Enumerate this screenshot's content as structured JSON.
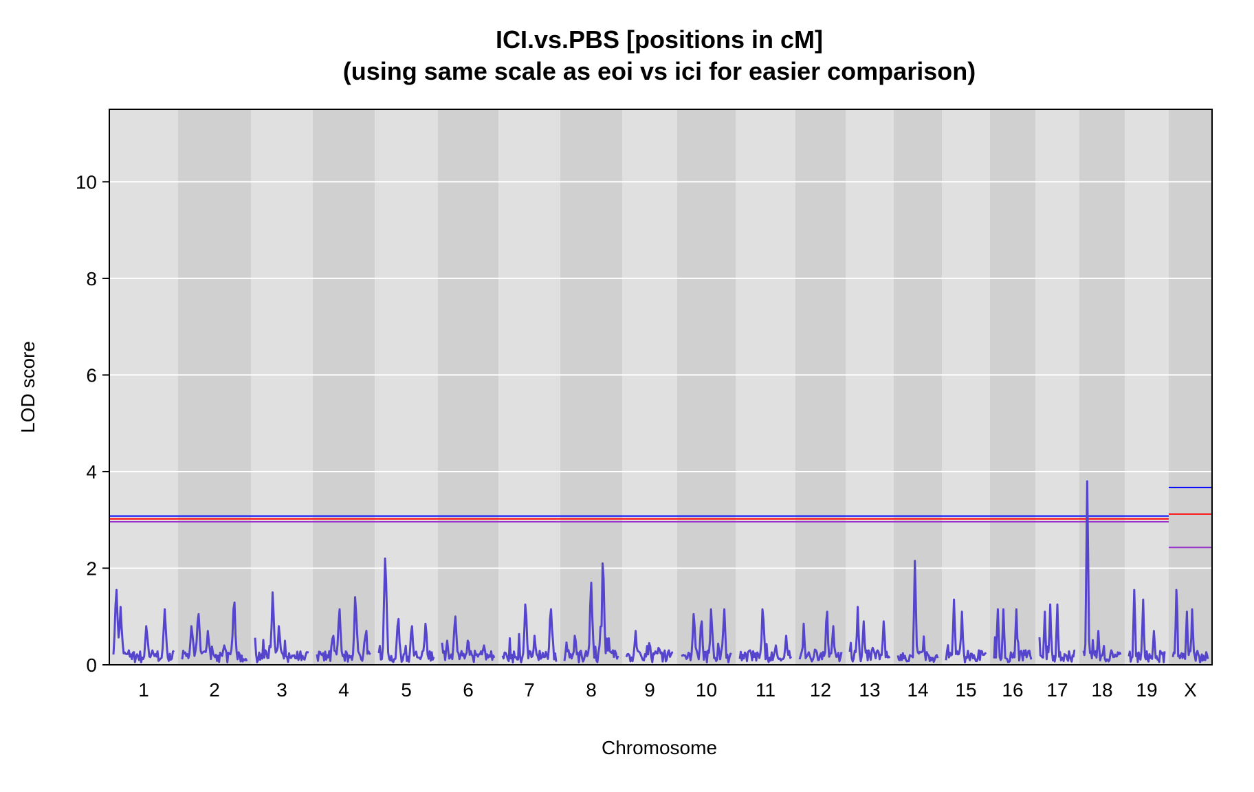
{
  "chart_data": {
    "type": "line",
    "title_line1": "ICI.vs.PBS [positions in cM]",
    "title_line2": "(using same scale as eoi vs ici for easier comparison)",
    "xlabel": "Chromosome",
    "ylabel": "LOD score",
    "ylim": [
      0,
      11.5
    ],
    "yticks": [
      "0",
      "2",
      "4",
      "6",
      "8",
      "10"
    ],
    "grid": true,
    "colors": {
      "lod": "#5544cc",
      "threshold_blue": "#0000ff",
      "threshold_red": "#ff0000",
      "threshold_purple": "#9933cc",
      "band_light": "#e0e0e0",
      "band_dark": "#d0d0d0"
    },
    "chromosomes": [
      {
        "name": "1",
        "peaks": [
          [
            0.05,
            1.55
          ],
          [
            0.12,
            1.2
          ],
          [
            0.25,
            0.3
          ],
          [
            0.55,
            0.8
          ],
          [
            0.85,
            1.15
          ]
        ]
      },
      {
        "name": "2",
        "peaks": [
          [
            0.15,
            0.8
          ],
          [
            0.25,
            1.05
          ],
          [
            0.4,
            0.7
          ],
          [
            0.65,
            0.4
          ],
          [
            0.8,
            1.15
          ]
        ]
      },
      {
        "name": "3",
        "peaks": [
          [
            0.2,
            0.3
          ],
          [
            0.33,
            1.5
          ],
          [
            0.5,
            0.25
          ],
          [
            0.45,
            0.8
          ],
          [
            0.8,
            0.1
          ]
        ]
      },
      {
        "name": "4",
        "peaks": [
          [
            0.1,
            0.2
          ],
          [
            0.3,
            0.6
          ],
          [
            0.42,
            1.15
          ],
          [
            0.72,
            1.4
          ],
          [
            0.9,
            0.6
          ]
        ]
      },
      {
        "name": "5",
        "peaks": [
          [
            0.12,
            2.2
          ],
          [
            0.35,
            0.95
          ],
          [
            0.6,
            0.8
          ],
          [
            0.85,
            0.85
          ]
        ]
      },
      {
        "name": "6",
        "peaks": [
          [
            0.1,
            0.5
          ],
          [
            0.25,
            1.0
          ],
          [
            0.5,
            0.5
          ],
          [
            0.8,
            0.4
          ]
        ]
      },
      {
        "name": "7",
        "peaks": [
          [
            0.2,
            0.05
          ],
          [
            0.43,
            1.25
          ],
          [
            0.6,
            0.6
          ],
          [
            0.9,
            1.15
          ]
        ]
      },
      {
        "name": "8",
        "peaks": [
          [
            0.2,
            0.6
          ],
          [
            0.5,
            1.7
          ],
          [
            0.7,
            0.8
          ],
          [
            0.72,
            2.1
          ],
          [
            0.9,
            0.3
          ]
        ]
      },
      {
        "name": "9",
        "peaks": [
          [
            0.2,
            0.7
          ],
          [
            0.5,
            0.45
          ],
          [
            0.7,
            0.35
          ],
          [
            0.9,
            0.3
          ]
        ]
      },
      {
        "name": "10",
        "peaks": [
          [
            0.25,
            1.05
          ],
          [
            0.4,
            0.9
          ],
          [
            0.6,
            1.15
          ],
          [
            0.85,
            1.15
          ]
        ]
      },
      {
        "name": "11",
        "peaks": [
          [
            0.2,
            0.3
          ],
          [
            0.45,
            1.15
          ],
          [
            0.7,
            0.4
          ],
          [
            0.9,
            0.6
          ]
        ]
      },
      {
        "name": "12",
        "peaks": [
          [
            0.1,
            0.85
          ],
          [
            0.4,
            0.3
          ],
          [
            0.65,
            1.1
          ],
          [
            0.8,
            0.8
          ]
        ]
      },
      {
        "name": "13",
        "peaks": [
          [
            0.2,
            1.2
          ],
          [
            0.35,
            0.9
          ],
          [
            0.6,
            0.3
          ],
          [
            0.85,
            0.9
          ]
        ]
      },
      {
        "name": "14",
        "peaks": [
          [
            0.1,
            0.1
          ],
          [
            0.43,
            2.15
          ],
          [
            0.7,
            0.1
          ]
        ]
      },
      {
        "name": "15",
        "peaks": [
          [
            0.2,
            1.35
          ],
          [
            0.4,
            1.1
          ],
          [
            0.7,
            0.2
          ]
        ]
      },
      {
        "name": "16",
        "peaks": [
          [
            0.1,
            1.15
          ],
          [
            0.25,
            1.15
          ],
          [
            0.6,
            1.15
          ],
          [
            0.85,
            0.3
          ]
        ]
      },
      {
        "name": "17",
        "peaks": [
          [
            0.15,
            1.1
          ],
          [
            0.3,
            1.25
          ],
          [
            0.5,
            1.25
          ],
          [
            0.75,
            0.2
          ]
        ]
      },
      {
        "name": "18",
        "peaks": [
          [
            0.1,
            3.8
          ],
          [
            0.4,
            0.7
          ],
          [
            0.75,
            0.3
          ]
        ]
      },
      {
        "name": "19",
        "peaks": [
          [
            0.15,
            1.55
          ],
          [
            0.4,
            1.35
          ],
          [
            0.7,
            0.7
          ]
        ]
      },
      {
        "name": "X",
        "peaks": [
          [
            0.1,
            1.55
          ],
          [
            0.4,
            1.1
          ],
          [
            0.55,
            1.15
          ],
          [
            0.8,
            0.1
          ]
        ]
      }
    ],
    "thresholds_autosomes": [
      3.08,
      3.02,
      2.96
    ],
    "thresholds_x": [
      3.67,
      3.12,
      2.43
    ]
  }
}
